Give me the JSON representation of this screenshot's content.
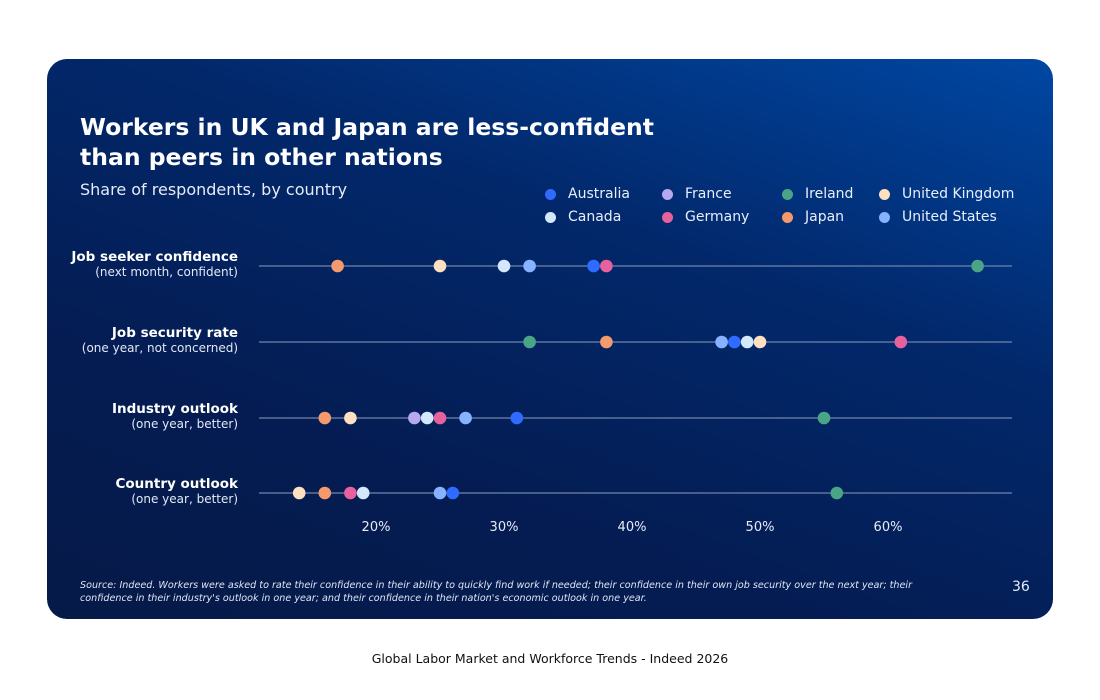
{
  "chart_data": {
    "type": "dot",
    "title": "Workers in UK and Japan are less-confident than peers in other nations",
    "subtitle": "Share of respondents, by country",
    "xlim": [
      0,
      70
    ],
    "xticks": [
      "20%",
      "30%",
      "40%",
      "50%",
      "60%"
    ],
    "xtick_values": [
      20,
      30,
      40,
      50,
      60
    ],
    "grid": false,
    "legend_position": "top-right",
    "series": [
      {
        "name": "Australia",
        "color": "#2f6bff",
        "values": [
          37,
          48,
          31,
          26
        ]
      },
      {
        "name": "France",
        "color": "#b7a9f0",
        "values": [
          null,
          null,
          23,
          null
        ]
      },
      {
        "name": "Ireland",
        "color": "#4aa586",
        "values": [
          67,
          32,
          55,
          56
        ]
      },
      {
        "name": "United Kingdom",
        "color": "#fde0c0",
        "values": [
          25,
          50,
          18,
          14
        ]
      },
      {
        "name": "Canada",
        "color": "#d4e8fb",
        "values": [
          30,
          49,
          24,
          19
        ]
      },
      {
        "name": "Germany",
        "color": "#e8619f",
        "values": [
          38,
          61,
          25,
          18
        ]
      },
      {
        "name": "Japan",
        "color": "#f59a6c",
        "values": [
          17,
          38,
          16,
          16
        ]
      },
      {
        "name": "United States",
        "color": "#86b2ff",
        "values": [
          32,
          47,
          27,
          25
        ]
      }
    ],
    "categories": [
      {
        "label": "Job seeker confidence",
        "sub": "(next month, confident)"
      },
      {
        "label": "Job security rate",
        "sub": "(one year, not concerned)"
      },
      {
        "label": "Industry outlook",
        "sub": "(one year, better)"
      },
      {
        "label": "Country outlook",
        "sub": "(one year, better)"
      }
    ]
  },
  "source": "Source: Indeed. Workers were asked to rate their confidence in their ability to quickly find work if needed; their confidence in their own job security over the next year; their confidence in their industry's outlook in one year; and their confidence in their nation's economic outlook in one year.",
  "page_number": "36",
  "footer": "Global Labor Market and Workforce Trends - Indeed 2026"
}
